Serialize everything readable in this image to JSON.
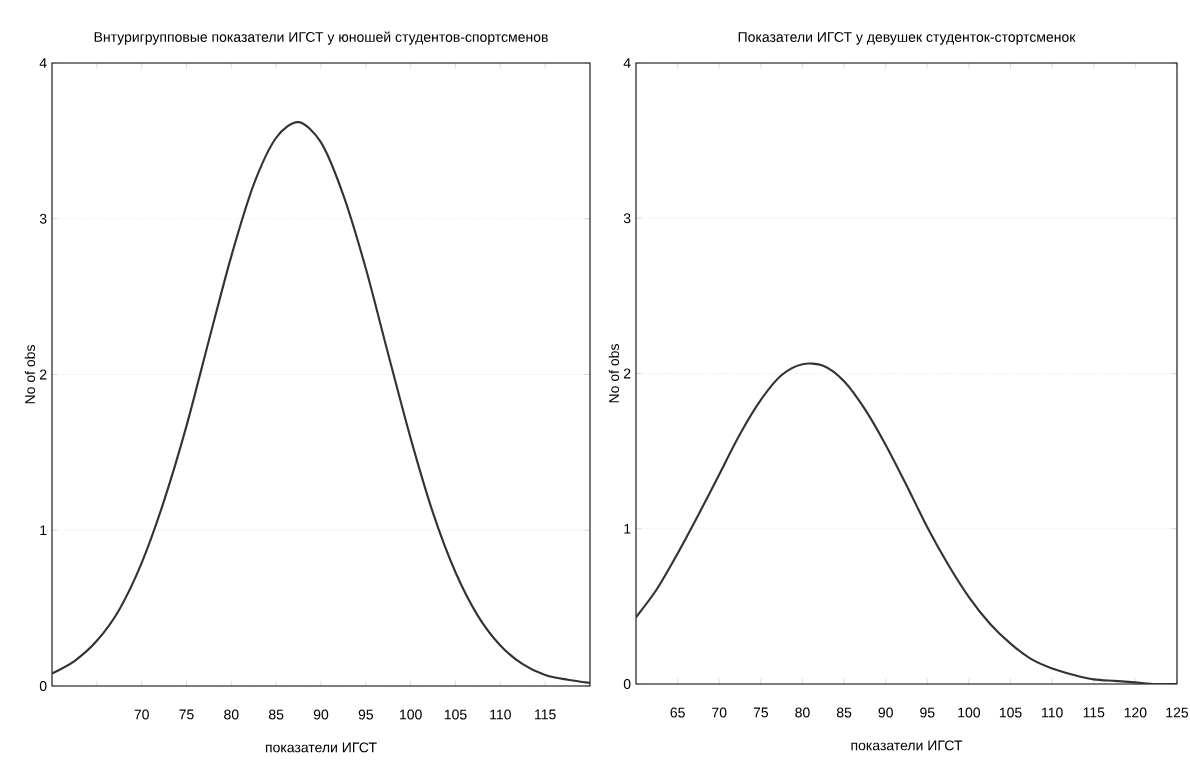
{
  "chart_data": [
    {
      "type": "line",
      "title": "Внтуригрупповые показатели ИГСТ у юношей студентов-спортсменов",
      "xlabel": "показатели ИГСТ",
      "ylabel": "No of obs",
      "x": [
        60,
        62.5,
        65,
        67.5,
        70,
        72.5,
        75,
        77.5,
        80,
        82.5,
        85,
        87.5,
        90,
        92.5,
        95,
        97.5,
        100,
        102.5,
        105,
        107.5,
        110,
        112.5,
        115,
        117.5,
        120
      ],
      "series": [
        {
          "color": "#333333",
          "values": [
            0.08,
            0.16,
            0.29,
            0.49,
            0.79,
            1.19,
            1.67,
            2.22,
            2.76,
            3.22,
            3.52,
            3.62,
            3.49,
            3.15,
            2.68,
            2.13,
            1.59,
            1.11,
            0.73,
            0.45,
            0.26,
            0.14,
            0.07,
            0.04,
            0.02
          ]
        }
      ],
      "xlim": [
        60,
        120
      ],
      "xticks": [
        {
          "value": 65,
          "label": null
        },
        70,
        75,
        80,
        85,
        90,
        95,
        100,
        105,
        110,
        115
      ],
      "ylim": [
        0,
        4
      ],
      "yticks": [
        0,
        1,
        2,
        3,
        4
      ],
      "grid": "y"
    },
    {
      "type": "line",
      "title": "Показатели ИГСТ у девушек студенток-стортсменок",
      "xlabel": "показатели ИГСТ",
      "ylabel": "No of obs",
      "x": [
        60,
        62.5,
        65,
        67.5,
        70,
        72.5,
        75,
        77.5,
        80,
        82.5,
        85,
        87.5,
        90,
        92.5,
        95,
        97.5,
        100,
        102.5,
        105,
        107.5,
        110,
        112.5,
        115,
        117.5,
        120,
        122.5,
        125
      ],
      "series": [
        {
          "color": "#333333",
          "values": [
            0.43,
            0.61,
            0.84,
            1.09,
            1.35,
            1.61,
            1.83,
            1.99,
            2.06,
            2.05,
            1.95,
            1.77,
            1.54,
            1.28,
            1.01,
            0.77,
            0.56,
            0.39,
            0.26,
            0.16,
            0.1,
            0.06,
            0.03,
            0.02,
            0.01,
            0.0,
            0.0
          ]
        }
      ],
      "xlim": [
        60,
        125
      ],
      "xticks": [
        65,
        70,
        75,
        80,
        85,
        90,
        95,
        100,
        105,
        110,
        115,
        120,
        125
      ],
      "ylim": [
        0,
        4
      ],
      "yticks": [
        0,
        1,
        2,
        3,
        4
      ],
      "grid": "y"
    }
  ]
}
